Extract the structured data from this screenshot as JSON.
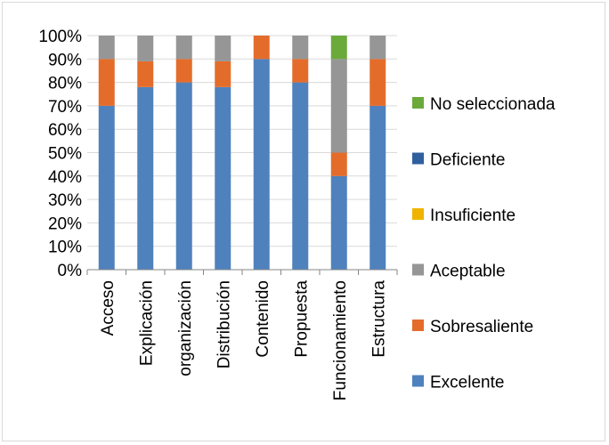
{
  "chart_data": {
    "type": "bar",
    "stacked": true,
    "percent": true,
    "categories": [
      "Acceso",
      "Explicación",
      "organización",
      "Distribución",
      "Contenido",
      "Propuesta",
      "Funcionamiento",
      "Estructura"
    ],
    "series": [
      {
        "name": "Excelente",
        "color": "#4f81bd",
        "values": [
          70,
          78,
          80,
          78,
          90,
          80,
          40,
          70
        ]
      },
      {
        "name": "Sobresaliente",
        "color": "#e46c2b",
        "values": [
          20,
          11,
          10,
          11,
          10,
          10,
          10,
          20
        ]
      },
      {
        "name": "Aceptable",
        "color": "#969696",
        "values": [
          10,
          11,
          10,
          11,
          0,
          10,
          40,
          10
        ]
      },
      {
        "name": "Insuficiente",
        "color": "#f0b400",
        "values": [
          0,
          0,
          0,
          0,
          0,
          0,
          0,
          0
        ]
      },
      {
        "name": "Deficiente",
        "color": "#2f5f9e",
        "values": [
          0,
          0,
          0,
          0,
          0,
          0,
          0,
          0
        ]
      },
      {
        "name": "No seleccionada",
        "color": "#6aaa3a",
        "values": [
          0,
          0,
          0,
          0,
          0,
          0,
          10,
          0
        ]
      }
    ],
    "ylim": [
      0,
      100
    ],
    "yticks": [
      "0%",
      "10%",
      "20%",
      "30%",
      "40%",
      "50%",
      "60%",
      "70%",
      "80%",
      "90%",
      "100%"
    ],
    "grid": true,
    "legend_position": "right"
  }
}
